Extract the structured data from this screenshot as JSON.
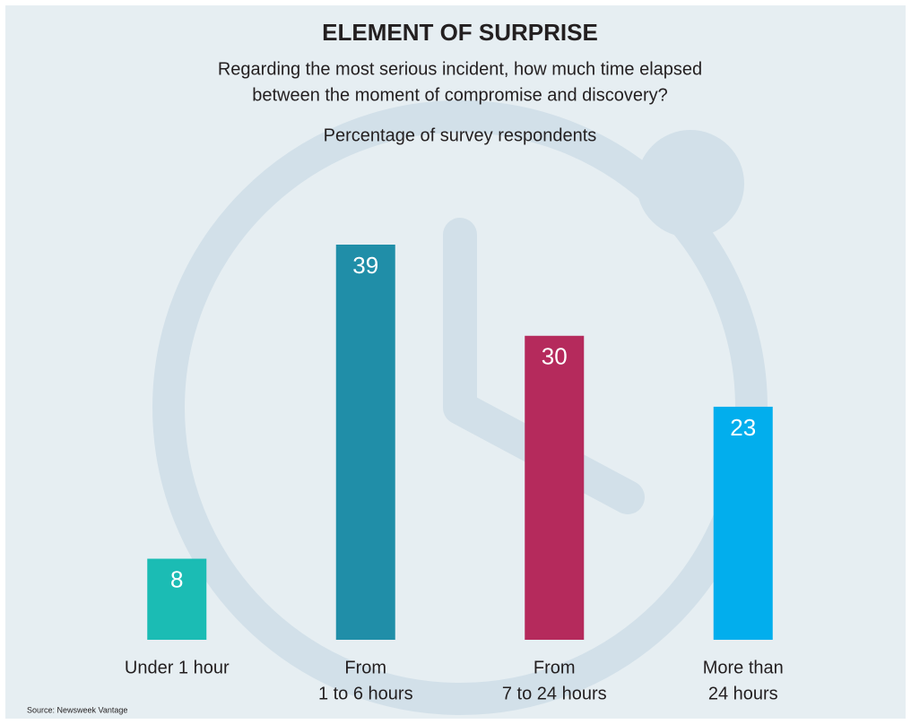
{
  "chart_data": {
    "type": "bar",
    "title": "ELEMENT OF SURPRISE",
    "subtitle": [
      "Regarding the most serious incident, how much time elapsed",
      "between the moment of compromise and discovery?"
    ],
    "y_label": "Percentage of survey respondents",
    "categories": [
      [
        "Under 1 hour"
      ],
      [
        "From",
        "1 to 6 hours"
      ],
      [
        "From",
        "7 to 24 hours"
      ],
      [
        "More than",
        "24 hours"
      ]
    ],
    "values": [
      8,
      39,
      30,
      23
    ],
    "colors": [
      "#1bbcb4",
      "#208ea8",
      "#b52a5c",
      "#02aeed"
    ],
    "source": "Source: Newsweek Vantage"
  }
}
